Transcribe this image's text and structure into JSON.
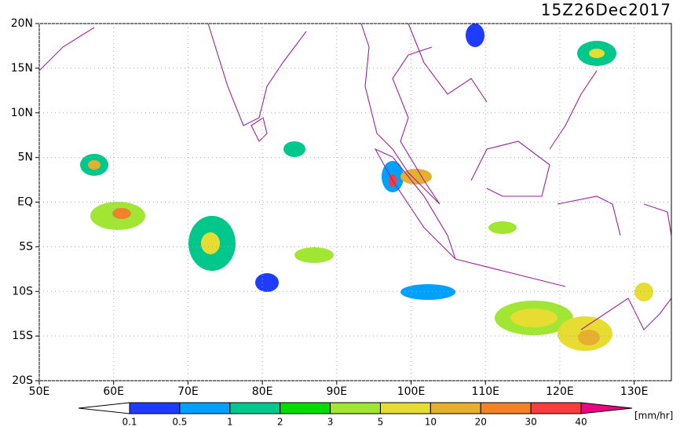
{
  "title": "15Z26Dec2017",
  "lon_range": [
    50,
    135
  ],
  "lat_range": [
    -20,
    20
  ],
  "lat_ticks": [
    {
      "value": 20,
      "label": "20N"
    },
    {
      "value": 15,
      "label": "15N"
    },
    {
      "value": 10,
      "label": "10N"
    },
    {
      "value": 5,
      "label": "5N"
    },
    {
      "value": 0,
      "label": "EQ"
    },
    {
      "value": -5,
      "label": "5S"
    },
    {
      "value": -10,
      "label": "10S"
    },
    {
      "value": -15,
      "label": "15S"
    },
    {
      "value": -20,
      "label": "20S"
    }
  ],
  "lon_ticks": [
    {
      "value": 50,
      "label": "50E"
    },
    {
      "value": 60,
      "label": "60E"
    },
    {
      "value": 70,
      "label": "70E"
    },
    {
      "value": 80,
      "label": "80E"
    },
    {
      "value": 90,
      "label": "90E"
    },
    {
      "value": 100,
      "label": "100E"
    },
    {
      "value": 110,
      "label": "110E"
    },
    {
      "value": 120,
      "label": "120E"
    },
    {
      "value": 130,
      "label": "130E"
    }
  ],
  "colorbar": {
    "levels": [
      0.1,
      0.5,
      1,
      2,
      3,
      5,
      10,
      20,
      30,
      40
    ],
    "colors": [
      "#ffffff",
      "#1e3cff",
      "#00a0ff",
      "#00c88c",
      "#00dc00",
      "#a0e632",
      "#e6dc32",
      "#e6af2d",
      "#f08228",
      "#fa3c3c",
      "#f00082"
    ],
    "unit": "[mm/hr]"
  }
}
